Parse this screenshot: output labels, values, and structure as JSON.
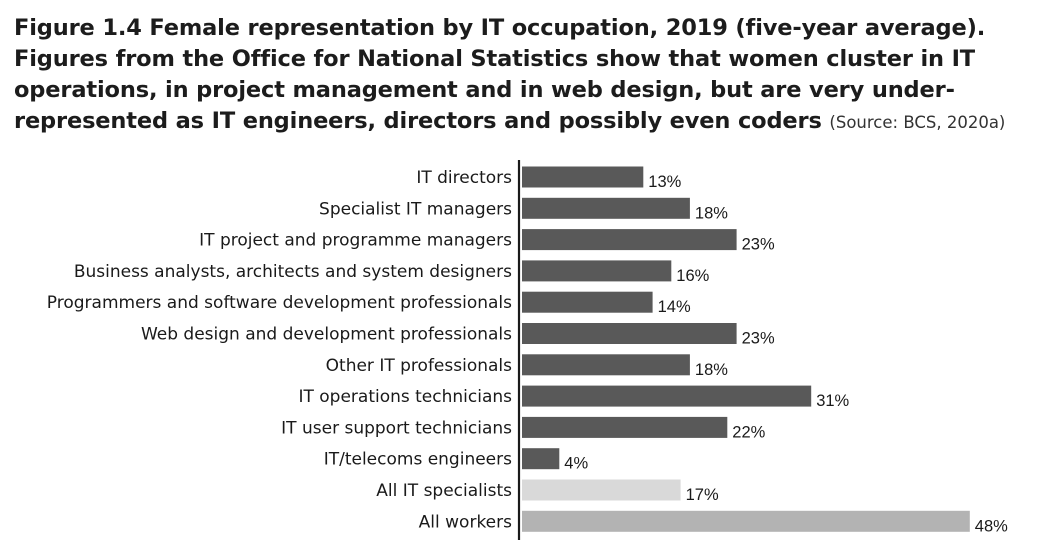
{
  "caption": {
    "title": "Figure 1.4 Female representation by IT occupation, 2019 (five-year average). Figures from the Office for National Statistics show that women cluster in IT operations, in project management and in web design, but are very under-represented as IT engineers, directors and possibly even coders",
    "source": "(Source: BCS, 2020a)"
  },
  "colors": {
    "occupation_bar": "#595959",
    "all_it_specialists_bar": "#d9d9d9",
    "all_workers_bar": "#b3b3b3",
    "axis": "#1a1a1a"
  },
  "chart_data": {
    "type": "bar",
    "orientation": "horizontal",
    "title": "Figure 1.4 Female representation by IT occupation, 2019 (five-year average)",
    "xlabel": "",
    "ylabel": "",
    "xlim": [
      0,
      50
    ],
    "grid": false,
    "legend": "none",
    "unit": "%",
    "categories": [
      "IT directors",
      "Specialist IT managers",
      "IT project and programme managers",
      "Business analysts, architects and system designers",
      "Programmers and software development professionals",
      "Web design and development professionals",
      "Other IT professionals",
      "IT operations technicians",
      "IT user support technicians",
      "IT/telecoms engineers",
      "All IT specialists",
      "All workers"
    ],
    "values": [
      13,
      18,
      23,
      16,
      14,
      23,
      18,
      31,
      22,
      4,
      17,
      48
    ],
    "value_labels": [
      "13%",
      "18%",
      "23%",
      "16%",
      "14%",
      "23%",
      "18%",
      "31%",
      "22%",
      "4%",
      "17%",
      "48%"
    ],
    "bar_colors": [
      "#595959",
      "#595959",
      "#595959",
      "#595959",
      "#595959",
      "#595959",
      "#595959",
      "#595959",
      "#595959",
      "#595959",
      "#d9d9d9",
      "#b3b3b3"
    ]
  }
}
